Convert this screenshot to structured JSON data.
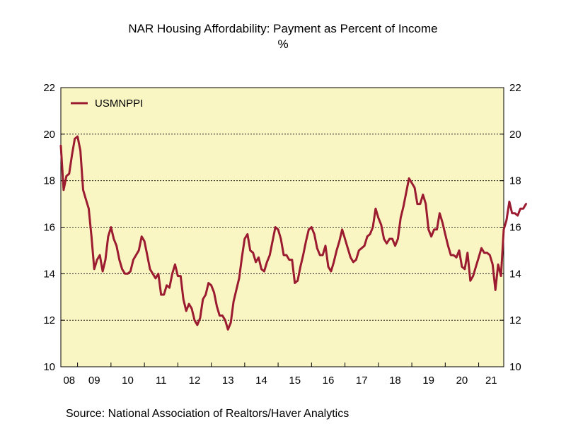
{
  "chart_data": {
    "type": "line",
    "title": "NAR Housing Affordability: Payment as Percent of Income",
    "subtitle": "%",
    "xlabel": "",
    "ylabel": "",
    "ylim": [
      10,
      22
    ],
    "yticks": [
      10,
      12,
      14,
      16,
      18,
      20,
      22
    ],
    "xlim": [
      2008.5,
      2021.75
    ],
    "xtick_labels": [
      {
        "label": "08",
        "year": 2008
      },
      {
        "label": "09",
        "year": 2009
      },
      {
        "label": "10",
        "year": 2010
      },
      {
        "label": "11",
        "year": 2011
      },
      {
        "label": "12",
        "year": 2012
      },
      {
        "label": "13",
        "year": 2013
      },
      {
        "label": "14",
        "year": 2014
      },
      {
        "label": "15",
        "year": 2015
      },
      {
        "label": "16",
        "year": 2016
      },
      {
        "label": "17",
        "year": 2017
      },
      {
        "label": "18",
        "year": 2018
      },
      {
        "label": "19",
        "year": 2019
      },
      {
        "label": "20",
        "year": 2020
      },
      {
        "label": "21",
        "year": 2021
      }
    ],
    "grid": true,
    "legend": "top-left",
    "background_color": "#FAF6C4",
    "series": [
      {
        "name": "USMNPPI",
        "color": "#9B1B30",
        "start": "2008-07",
        "frequency": "monthly",
        "values": [
          19.5,
          17.6,
          18.2,
          18.3,
          19.1,
          19.8,
          19.9,
          19.3,
          17.6,
          17.2,
          16.8,
          15.6,
          14.2,
          14.6,
          14.8,
          14.1,
          14.6,
          15.6,
          16.0,
          15.5,
          15.2,
          14.6,
          14.2,
          14.0,
          14.0,
          14.1,
          14.6,
          14.8,
          15.0,
          15.6,
          15.4,
          14.8,
          14.2,
          14.0,
          13.8,
          14.0,
          13.1,
          13.1,
          13.5,
          13.4,
          14.0,
          14.4,
          13.9,
          13.9,
          12.9,
          12.4,
          12.7,
          12.5,
          12.0,
          11.8,
          12.1,
          12.9,
          13.1,
          13.6,
          13.5,
          13.2,
          12.6,
          12.2,
          12.2,
          12.0,
          11.6,
          11.9,
          12.8,
          13.3,
          13.8,
          14.7,
          15.5,
          15.7,
          15.0,
          14.9,
          14.5,
          14.7,
          14.2,
          14.1,
          14.5,
          14.8,
          15.4,
          16.0,
          15.9,
          15.5,
          14.8,
          14.8,
          14.6,
          14.6,
          13.6,
          13.7,
          14.3,
          14.8,
          15.4,
          15.9,
          16.0,
          15.7,
          15.1,
          14.8,
          14.8,
          15.2,
          14.3,
          14.1,
          14.5,
          15.0,
          15.4,
          15.9,
          15.5,
          15.1,
          14.7,
          14.5,
          14.6,
          15.0,
          15.1,
          15.2,
          15.6,
          15.7,
          16.0,
          16.8,
          16.4,
          16.1,
          15.5,
          15.3,
          15.5,
          15.5,
          15.2,
          15.5,
          16.4,
          16.9,
          17.5,
          18.1,
          17.9,
          17.7,
          17.0,
          17.0,
          17.4,
          17.0,
          15.9,
          15.6,
          15.9,
          15.9,
          16.6,
          16.2,
          15.7,
          15.2,
          14.8,
          14.8,
          14.7,
          15.0,
          14.3,
          14.2,
          14.9,
          13.7,
          13.9,
          14.3,
          14.7,
          15.1,
          14.9,
          14.9,
          14.8,
          14.4,
          13.3,
          14.4,
          13.9,
          15.9,
          16.3,
          17.1,
          16.6,
          16.6,
          16.5,
          16.8,
          16.8,
          17.0
        ]
      }
    ]
  },
  "source_text": "Source:  National Association of Realtors/Haver Analytics"
}
